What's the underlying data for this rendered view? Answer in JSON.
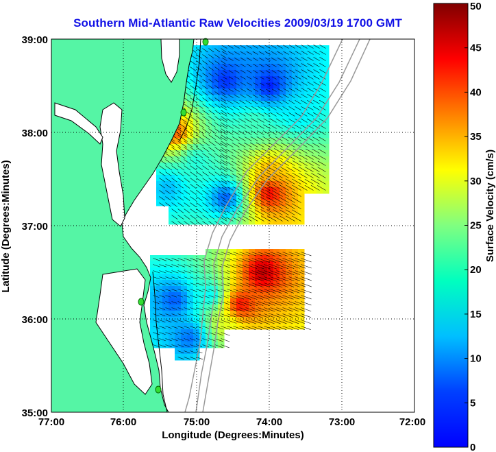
{
  "title": "Southern Mid-Atlantic Raw Velocities 2009/03/19 1700 GMT",
  "x_axis": {
    "label": "Longitude (Degrees:Minutes)",
    "ticks": [
      "77:00",
      "76:00",
      "75:00",
      "74:00",
      "73:00",
      "72:00"
    ],
    "range_deg_west": [
      77,
      72
    ]
  },
  "y_axis": {
    "label": "Latitude (Degrees:Minutes)",
    "ticks": [
      "39:00",
      "38:00",
      "37:00",
      "36:00",
      "35:00"
    ],
    "range_deg_north": [
      35,
      39
    ]
  },
  "colorbar": {
    "label": "Surface Velocity (cm/s)",
    "ticks": [
      "50",
      "45",
      "40",
      "35",
      "30",
      "25",
      "20",
      "15",
      "10",
      "5",
      "0"
    ],
    "range_cm_s": [
      0,
      50
    ],
    "colormap": "jet"
  },
  "colors": {
    "land": "#55f5a5",
    "coast": "#000000",
    "isobath": "#999999",
    "title": "#1010e6",
    "station": "#33dd33"
  },
  "chart_data": {
    "type": "heatmap",
    "title": "Southern Mid-Atlantic Raw Velocities 2009/03/19 1700 GMT",
    "xlabel": "Longitude (Degrees:Minutes)",
    "ylabel": "Latitude (Degrees:Minutes)",
    "colorbar_label": "Surface Velocity (cm/s)",
    "xlim": [
      -77,
      -72
    ],
    "ylim": [
      35,
      39
    ],
    "grid": true,
    "velocity_regions": [
      {
        "lon": -74.6,
        "lat": 38.55,
        "speed_cm_s": 8
      },
      {
        "lon": -74.0,
        "lat": 38.5,
        "speed_cm_s": 7
      },
      {
        "lon": -73.6,
        "lat": 38.2,
        "speed_cm_s": 18
      },
      {
        "lon": -74.2,
        "lat": 38.1,
        "speed_cm_s": 22
      },
      {
        "lon": -75.3,
        "lat": 38.0,
        "speed_cm_s": 40
      },
      {
        "lon": -75.0,
        "lat": 37.7,
        "speed_cm_s": 20
      },
      {
        "lon": -74.0,
        "lat": 37.6,
        "speed_cm_s": 35
      },
      {
        "lon": -74.0,
        "lat": 37.35,
        "speed_cm_s": 45
      },
      {
        "lon": -75.4,
        "lat": 37.4,
        "speed_cm_s": 15
      },
      {
        "lon": -74.6,
        "lat": 37.3,
        "speed_cm_s": 10
      },
      {
        "lon": -75.3,
        "lat": 36.2,
        "speed_cm_s": 10
      },
      {
        "lon": -74.8,
        "lat": 36.25,
        "speed_cm_s": 18
      },
      {
        "lon": -74.4,
        "lat": 36.15,
        "speed_cm_s": 45
      },
      {
        "lon": -74.1,
        "lat": 36.5,
        "speed_cm_s": 48
      },
      {
        "lon": -75.1,
        "lat": 35.8,
        "speed_cm_s": 11
      },
      {
        "lon": -74.6,
        "lat": 35.95,
        "speed_cm_s": 30
      }
    ]
  }
}
